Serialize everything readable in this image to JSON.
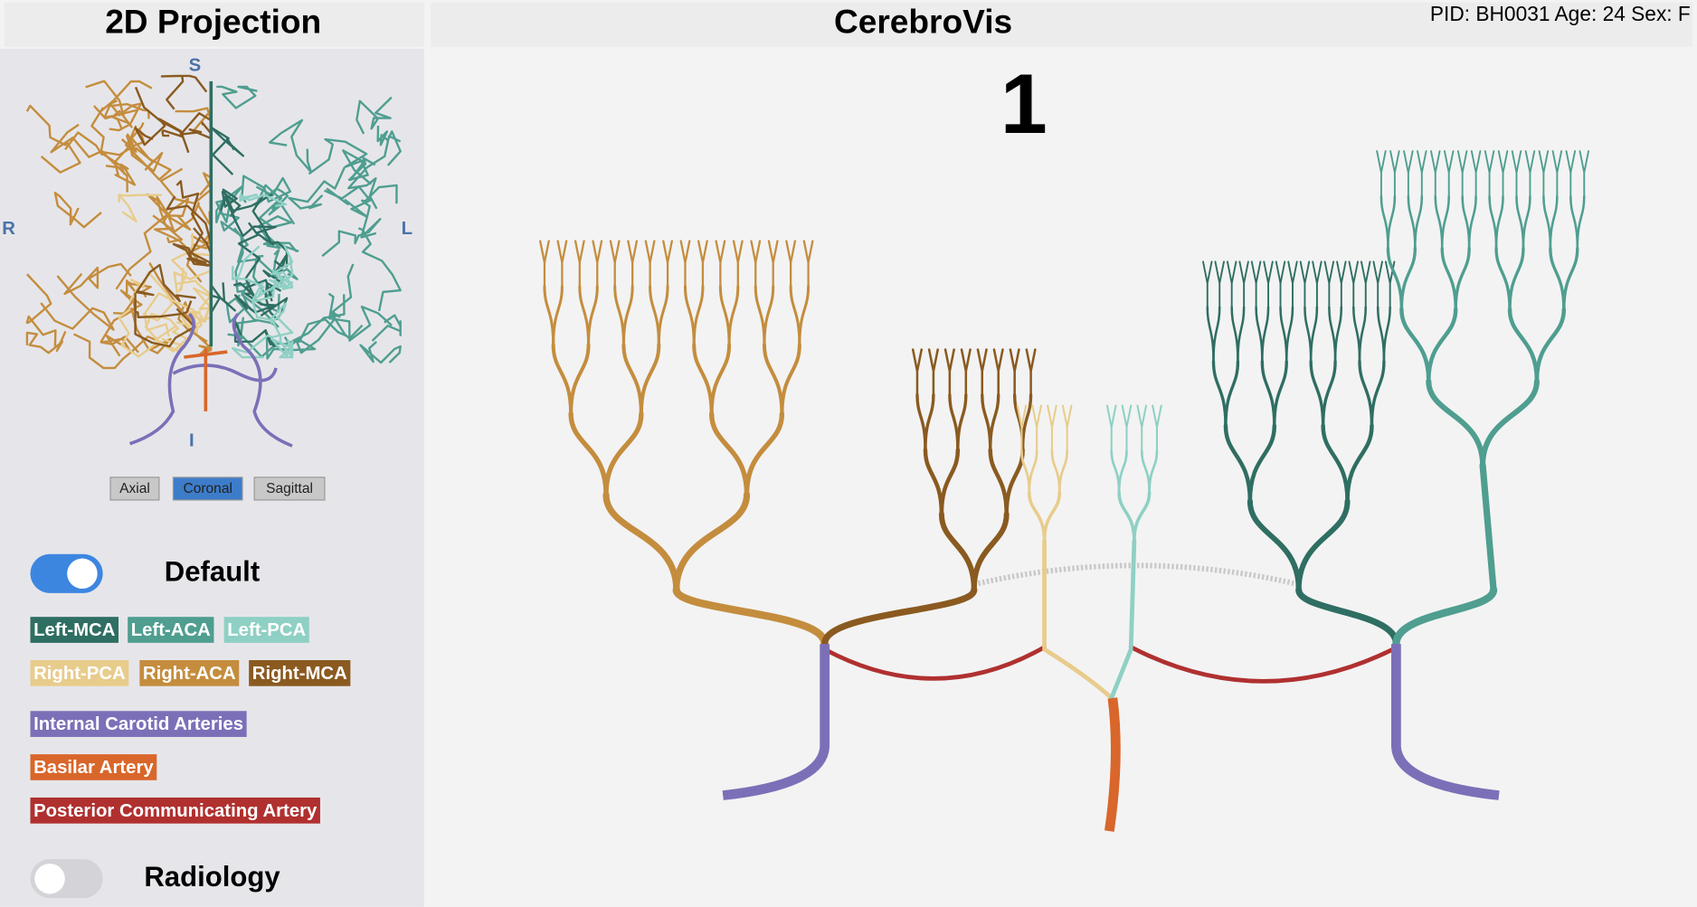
{
  "header": {
    "left_title": "2D Projection",
    "main_title": "CerebroVis",
    "patient_info": "PID: BH0031 Age: 24 Sex: F"
  },
  "projection": {
    "orientation_labels": {
      "superior": "S",
      "right": "R",
      "left": "L",
      "inferior": "I"
    },
    "view_buttons": [
      "Axial",
      "Coronal",
      "Sagittal"
    ],
    "active_view_index": 1
  },
  "toggles": [
    {
      "label": "Default",
      "on": true
    },
    {
      "label": "Radiology",
      "on": false
    }
  ],
  "legend": [
    {
      "label": "Left-MCA",
      "color": "#2f6e62"
    },
    {
      "label": "Left-ACA",
      "color": "#4f9e90"
    },
    {
      "label": "Left-PCA",
      "color": "#8fd0c4"
    },
    {
      "label": "Right-PCA",
      "color": "#e8cc8c"
    },
    {
      "label": "Right-ACA",
      "color": "#c48d3e"
    },
    {
      "label": "Right-MCA",
      "color": "#8a5a20"
    },
    {
      "label": "Internal Carotid Arteries",
      "color": "#7b70b8"
    },
    {
      "label": "Basilar Artery",
      "color": "#d9662a"
    },
    {
      "label": "Posterior Communicating Artery",
      "color": "#b03030"
    }
  ],
  "canvas": {
    "view_number": "1"
  }
}
